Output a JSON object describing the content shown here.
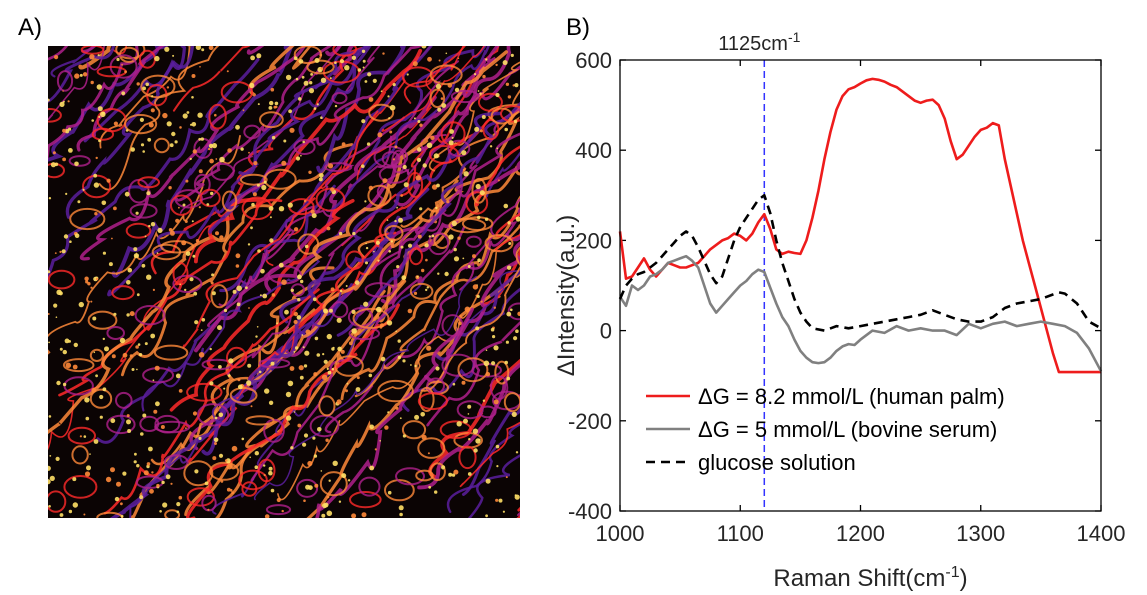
{
  "panels": {
    "a_label": "A)",
    "b_label": "B)"
  },
  "micrograph": {
    "palette": [
      "#0b0404",
      "#5a1f9e",
      "#b0208c",
      "#ff2a2a",
      "#ff8a3a",
      "#ffe066"
    ]
  },
  "chart_data": {
    "type": "line",
    "xlabel": "Raman Shift(cm",
    "xlabel_sup": "-1",
    "xlabel_close": ")",
    "ylabel": "ΔIntensity(a.u.)",
    "xlim": [
      1000,
      1400
    ],
    "ylim": [
      -400,
      600
    ],
    "xticks": [
      1000,
      1100,
      1200,
      1300,
      1400
    ],
    "yticks": [
      -400,
      -200,
      0,
      200,
      400,
      600
    ],
    "grid": false,
    "legend_position": "bottom-left",
    "annotation": {
      "text": "1125cm",
      "sup": "-1",
      "x": 1120,
      "color": "#3333ff"
    },
    "series": [
      {
        "name": "ΔG = 8.2 mmol/L (human palm)",
        "color": "#ee1c1c",
        "dash": "solid",
        "x": [
          1000,
          1005,
          1010,
          1015,
          1020,
          1025,
          1030,
          1035,
          1040,
          1045,
          1050,
          1055,
          1060,
          1065,
          1070,
          1075,
          1080,
          1085,
          1090,
          1095,
          1100,
          1105,
          1110,
          1115,
          1120,
          1125,
          1130,
          1135,
          1140,
          1145,
          1150,
          1155,
          1160,
          1165,
          1170,
          1175,
          1180,
          1185,
          1190,
          1195,
          1200,
          1205,
          1210,
          1215,
          1220,
          1225,
          1230,
          1235,
          1240,
          1245,
          1250,
          1255,
          1260,
          1265,
          1270,
          1275,
          1280,
          1285,
          1290,
          1295,
          1300,
          1305,
          1310,
          1315,
          1320,
          1325,
          1330,
          1335,
          1340,
          1345,
          1350,
          1355,
          1360,
          1365,
          1370,
          1375,
          1380,
          1385,
          1390,
          1395,
          1400
        ],
        "y": [
          220,
          115,
          120,
          140,
          160,
          135,
          120,
          135,
          150,
          145,
          140,
          140,
          145,
          150,
          165,
          180,
          190,
          200,
          205,
          215,
          210,
          200,
          215,
          240,
          258,
          225,
          180,
          170,
          175,
          172,
          170,
          200,
          250,
          310,
          380,
          440,
          490,
          520,
          535,
          540,
          548,
          555,
          558,
          556,
          552,
          545,
          540,
          530,
          520,
          510,
          505,
          510,
          512,
          500,
          470,
          420,
          380,
          390,
          410,
          430,
          445,
          450,
          460,
          455,
          380,
          320,
          260,
          200,
          150,
          100,
          50,
          0,
          -50,
          -92,
          -92,
          -92,
          -92,
          -92,
          -92,
          -92,
          -92
        ]
      },
      {
        "name": "ΔG = 5 mmol/L (bovine serum)",
        "color": "#808080",
        "dash": "solid",
        "x": [
          1000,
          1005,
          1010,
          1015,
          1020,
          1025,
          1030,
          1035,
          1040,
          1045,
          1050,
          1055,
          1060,
          1065,
          1070,
          1075,
          1080,
          1085,
          1090,
          1095,
          1100,
          1105,
          1110,
          1115,
          1120,
          1125,
          1130,
          1135,
          1140,
          1145,
          1150,
          1155,
          1160,
          1165,
          1170,
          1175,
          1180,
          1185,
          1190,
          1195,
          1200,
          1210,
          1220,
          1230,
          1240,
          1250,
          1260,
          1270,
          1280,
          1290,
          1300,
          1310,
          1320,
          1330,
          1340,
          1350,
          1360,
          1370,
          1380,
          1390,
          1400
        ],
        "y": [
          75,
          55,
          100,
          90,
          100,
          120,
          125,
          135,
          150,
          155,
          160,
          165,
          155,
          140,
          100,
          60,
          40,
          55,
          70,
          85,
          100,
          110,
          125,
          135,
          130,
          95,
          60,
          30,
          10,
          -20,
          -45,
          -60,
          -70,
          -72,
          -70,
          -60,
          -45,
          -35,
          -30,
          -32,
          -20,
          0,
          -5,
          10,
          0,
          5,
          0,
          0,
          -10,
          15,
          5,
          15,
          20,
          10,
          15,
          20,
          15,
          10,
          -5,
          -40,
          -90
        ]
      },
      {
        "name": "glucose solution",
        "color": "#000000",
        "dash": "dashed",
        "x": [
          1000,
          1005,
          1010,
          1015,
          1020,
          1025,
          1030,
          1035,
          1040,
          1045,
          1050,
          1055,
          1060,
          1065,
          1070,
          1075,
          1080,
          1085,
          1090,
          1095,
          1100,
          1105,
          1110,
          1115,
          1120,
          1125,
          1130,
          1135,
          1140,
          1145,
          1150,
          1155,
          1160,
          1170,
          1180,
          1190,
          1200,
          1210,
          1220,
          1230,
          1240,
          1250,
          1260,
          1270,
          1280,
          1290,
          1300,
          1310,
          1320,
          1330,
          1340,
          1350,
          1360,
          1365,
          1370,
          1380,
          1390,
          1400
        ],
        "y": [
          70,
          100,
          115,
          125,
          130,
          140,
          150,
          165,
          180,
          195,
          210,
          220,
          210,
          185,
          155,
          125,
          105,
          120,
          160,
          200,
          230,
          250,
          270,
          290,
          300,
          260,
          200,
          150,
          110,
          70,
          40,
          20,
          5,
          0,
          10,
          5,
          10,
          15,
          20,
          25,
          30,
          35,
          45,
          35,
          25,
          20,
          20,
          30,
          50,
          60,
          65,
          70,
          80,
          85,
          82,
          60,
          20,
          5
        ]
      }
    ]
  }
}
